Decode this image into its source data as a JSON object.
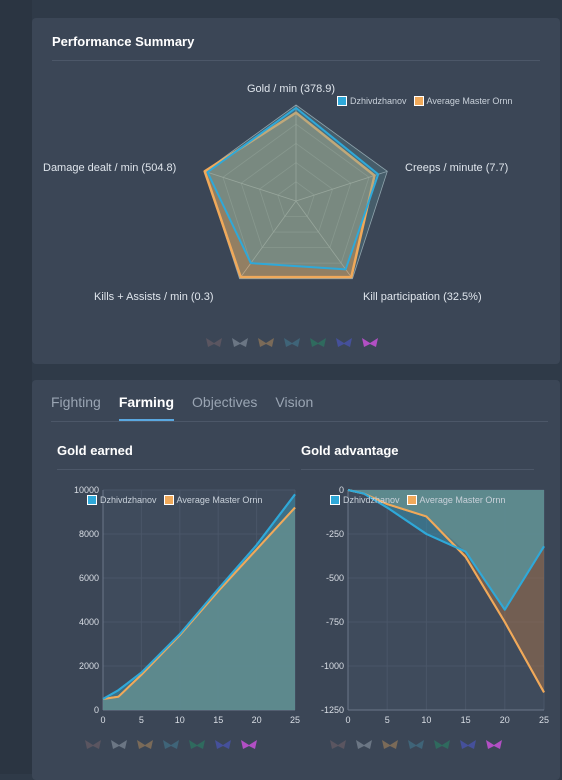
{
  "performance": {
    "title": "Performance Summary",
    "axes": [
      "Gold / min (378.9)",
      "Creeps / minute (7.7)",
      "Kill participation (32.5%)",
      "Kills + Assists / min (0.3)",
      "Damage dealt / min (504.8)"
    ],
    "legend": [
      "Dzhivdzhanov",
      "Average Master Ornn"
    ]
  },
  "tabs": [
    "Fighting",
    "Farming",
    "Objectives",
    "Vision"
  ],
  "active_tab": "Farming",
  "colors": {
    "player": "#2fa8d8",
    "average": "#f0a95a",
    "card": "#3b4656",
    "bg": "#2f3a48"
  },
  "rank_icons": [
    "iron-icon",
    "bronze-icon",
    "silver-icon",
    "gold-icon",
    "platinum-icon",
    "diamond-icon",
    "master-icon"
  ],
  "gold_earned": {
    "title": "Gold earned",
    "legend": [
      "Dzhivdzhanov",
      "Average Master Ornn"
    ]
  },
  "gold_advantage": {
    "title": "Gold advantage",
    "legend": [
      "Dzhivdzhanov",
      "Average Master Ornn"
    ]
  },
  "chart_data": [
    {
      "type": "radar",
      "title": "Performance Summary",
      "axes": [
        "Gold / min (378.9)",
        "Creeps / minute (7.7)",
        "Kill participation (32.5%)",
        "Kills + Assists / min (0.3)",
        "Damage dealt / min (504.8)"
      ],
      "series": [
        {
          "name": "Dzhivdzhanov",
          "values": [
            0.97,
            0.9,
            0.88,
            0.8,
            0.97
          ]
        },
        {
          "name": "Average Master Ornn",
          "values": [
            0.92,
            0.86,
            0.98,
            0.98,
            1.0
          ]
        }
      ]
    },
    {
      "type": "area",
      "title": "Gold earned",
      "x": [
        0,
        2,
        5,
        10,
        15,
        20,
        25
      ],
      "xlim": [
        0,
        25
      ],
      "ylim": [
        0,
        10000
      ],
      "xticks": [
        0,
        5,
        10,
        15,
        20,
        25
      ],
      "yticks": [
        0,
        2000,
        4000,
        6000,
        8000,
        10000
      ],
      "series": [
        {
          "name": "Dzhivdzhanov",
          "values": [
            500,
            900,
            1700,
            3450,
            5500,
            7500,
            9800
          ]
        },
        {
          "name": "Average Master Ornn",
          "values": [
            500,
            600,
            1600,
            3400,
            5400,
            7300,
            9200
          ]
        }
      ]
    },
    {
      "type": "area",
      "title": "Gold advantage",
      "x": [
        0,
        2,
        5,
        10,
        15,
        20,
        25
      ],
      "xlim": [
        0,
        25
      ],
      "ylim": [
        -1250,
        0
      ],
      "xticks": [
        0,
        5,
        10,
        15,
        20,
        25
      ],
      "yticks": [
        0,
        -250,
        -500,
        -750,
        -1000,
        -1250
      ],
      "series": [
        {
          "name": "Dzhivdzhanov",
          "values": [
            0,
            -20,
            -100,
            -250,
            -350,
            -680,
            -320
          ]
        },
        {
          "name": "Average Master Ornn",
          "values": [
            0,
            -20,
            -80,
            -150,
            -380,
            -750,
            -1150
          ]
        }
      ]
    }
  ]
}
